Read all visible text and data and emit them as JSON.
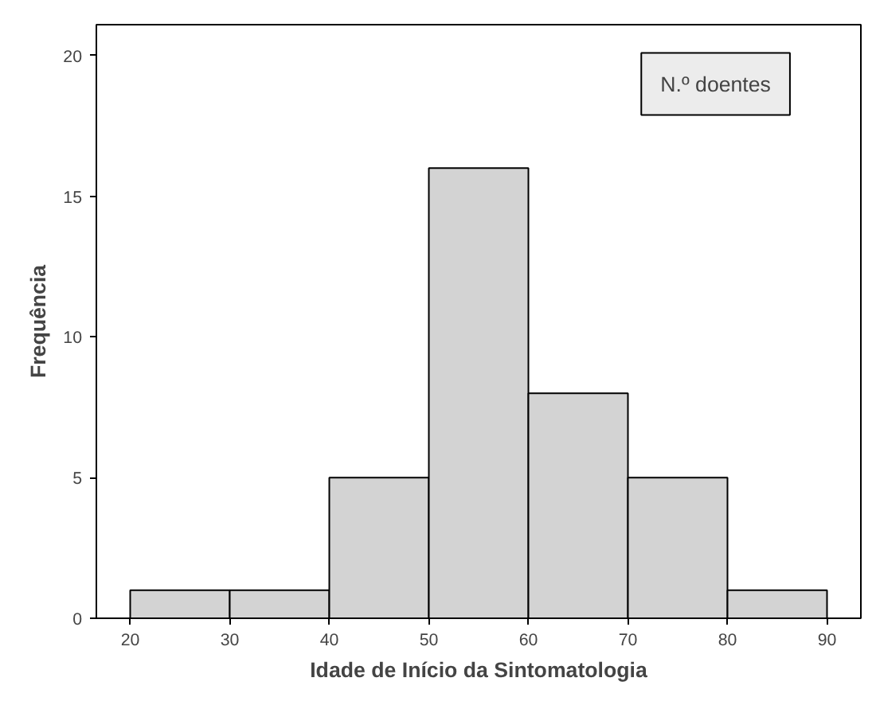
{
  "chart_data": {
    "type": "histogram",
    "xlabel": "Idade de Início da Sintomatologia",
    "ylabel": "Frequência",
    "bins": [
      20,
      30,
      40,
      50,
      60,
      70,
      80,
      90
    ],
    "values": [
      1,
      1,
      5,
      16,
      8,
      5,
      1
    ],
    "color": "#d3d3d3",
    "xlim": [
      16.6,
      93.4
    ],
    "ylim": [
      0,
      21.1
    ],
    "xticks": [
      20,
      30,
      40,
      50,
      60,
      70,
      80,
      90
    ],
    "yticks": [
      0,
      5,
      10,
      15,
      20
    ],
    "annotations": [
      "N.º doentes"
    ],
    "grid": false
  }
}
